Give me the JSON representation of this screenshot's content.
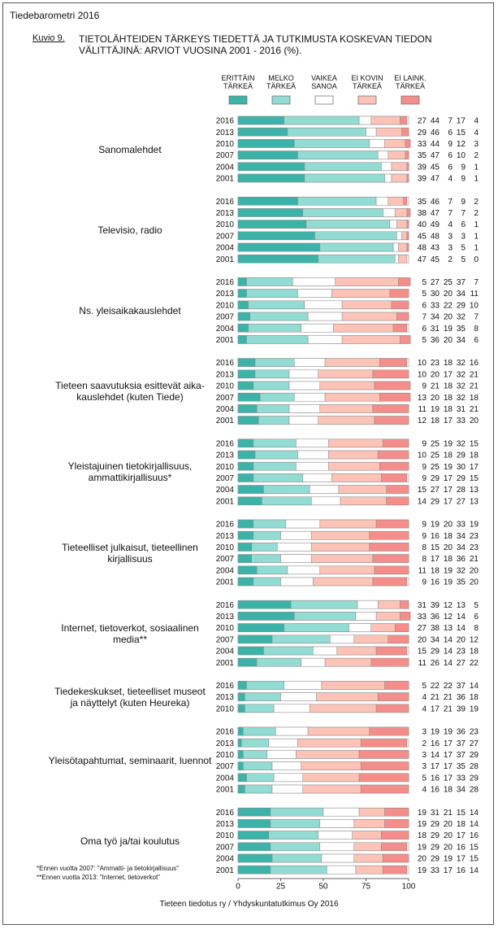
{
  "header": "Tiedebarometri 2016",
  "figure_label": "Kuvio 9.",
  "chart_data": {
    "type": "stacked-bar",
    "title": "TIETOLÄHTEIDEN TÄRKEYS TIEDETTÄ JA TUTKIMUSTA KOSKEVAN TIEDON\nVÄLITTÄJINÄ: ARVIOT VUOSINA 2001 - 2016 (%).",
    "xlim": [
      0,
      100
    ],
    "xticks": [
      0,
      25,
      50,
      75,
      100
    ],
    "series": [
      {
        "name": "ERITTÄIN\nTÄRKEÄ",
        "color": "#3cb3a9"
      },
      {
        "name": "MELKO\nTÄRKEÄ",
        "color": "#93dcd3"
      },
      {
        "name": "VAIKEA\nSANOA",
        "color": "#ffffff"
      },
      {
        "name": "EI KOVIN\nTÄRKEÄ",
        "color": "#fcc3b6"
      },
      {
        "name": "EI LAINK.\nTÄRKEÄ",
        "color": "#f58e8a"
      }
    ],
    "groups": [
      {
        "label": "Sanomalehdet",
        "categories": [
          "2016",
          "2013",
          "2010",
          "2007",
          "2004",
          "2001"
        ],
        "values": [
          [
            27,
            44,
            7,
            17,
            4
          ],
          [
            29,
            46,
            6,
            15,
            4
          ],
          [
            33,
            44,
            9,
            12,
            3
          ],
          [
            35,
            47,
            6,
            10,
            2
          ],
          [
            39,
            45,
            6,
            9,
            1
          ],
          [
            39,
            47,
            4,
            9,
            1
          ]
        ]
      },
      {
        "label": "Televisio, radio",
        "categories": [
          "2016",
          "2013",
          "2010",
          "2007",
          "2004",
          "2001"
        ],
        "values": [
          [
            35,
            46,
            7,
            9,
            2
          ],
          [
            38,
            47,
            7,
            7,
            2
          ],
          [
            40,
            49,
            4,
            6,
            1
          ],
          [
            45,
            48,
            3,
            3,
            1
          ],
          [
            48,
            43,
            3,
            5,
            1
          ],
          [
            47,
            45,
            2,
            5,
            0
          ]
        ]
      },
      {
        "label": "Ns. yleisaikakauslehdet",
        "categories": [
          "2016",
          "2013",
          "2010",
          "2007",
          "2004",
          "2001"
        ],
        "values": [
          [
            5,
            27,
            25,
            37,
            7
          ],
          [
            5,
            30,
            20,
            34,
            11
          ],
          [
            6,
            33,
            22,
            29,
            10
          ],
          [
            7,
            34,
            20,
            32,
            7
          ],
          [
            6,
            31,
            19,
            35,
            8
          ],
          [
            5,
            36,
            20,
            34,
            6
          ]
        ]
      },
      {
        "label": "Tieteen saavutuksia esittevät aika-\nkauslehdet (kuten Tiede)",
        "categories": [
          "2016",
          "2013",
          "2010",
          "2007",
          "2004",
          "2001"
        ],
        "values": [
          [
            10,
            23,
            18,
            32,
            16
          ],
          [
            10,
            20,
            17,
            32,
            21
          ],
          [
            9,
            21,
            18,
            32,
            21
          ],
          [
            13,
            20,
            18,
            32,
            18
          ],
          [
            11,
            19,
            18,
            31,
            21
          ],
          [
            12,
            18,
            17,
            33,
            20
          ]
        ]
      },
      {
        "label": "Yleistajuinen tietokirjallisuus,\nammattikirjallisuus*",
        "categories": [
          "2016",
          "2013",
          "2010",
          "2007",
          "2004",
          "2001"
        ],
        "values": [
          [
            9,
            25,
            19,
            32,
            15
          ],
          [
            10,
            25,
            18,
            29,
            18
          ],
          [
            9,
            25,
            19,
            30,
            17
          ],
          [
            9,
            29,
            17,
            29,
            15
          ],
          [
            15,
            27,
            17,
            28,
            13
          ],
          [
            14,
            29,
            17,
            27,
            13
          ]
        ]
      },
      {
        "label": "Tieteelliset julkaisut, tieteellinen\nkirjallisuus",
        "categories": [
          "2016",
          "2013",
          "2010",
          "2007",
          "2004",
          "2001"
        ],
        "values": [
          [
            9,
            19,
            20,
            33,
            19
          ],
          [
            9,
            16,
            18,
            34,
            23
          ],
          [
            8,
            15,
            20,
            34,
            23
          ],
          [
            8,
            17,
            18,
            36,
            21
          ],
          [
            11,
            18,
            19,
            32,
            20
          ],
          [
            9,
            16,
            19,
            35,
            20
          ]
        ]
      },
      {
        "label": "Internet, tietoverkot, sosiaalinen\nmedia**",
        "categories": [
          "2016",
          "2013",
          "2010",
          "2007",
          "2004",
          "2001"
        ],
        "values": [
          [
            31,
            39,
            12,
            13,
            5
          ],
          [
            33,
            36,
            12,
            14,
            6
          ],
          [
            27,
            38,
            13,
            14,
            8
          ],
          [
            20,
            34,
            14,
            20,
            12
          ],
          [
            15,
            29,
            14,
            23,
            18
          ],
          [
            11,
            26,
            14,
            27,
            22
          ]
        ]
      },
      {
        "label": "Tiedekeskukset, tieteelliset museot\nja näyttelyt (kuten Heureka)",
        "categories": [
          "2016",
          "2013",
          "2010"
        ],
        "values": [
          [
            5,
            22,
            22,
            37,
            14
          ],
          [
            4,
            21,
            21,
            36,
            18
          ],
          [
            4,
            17,
            21,
            39,
            19
          ]
        ]
      },
      {
        "label": "Yleisötapahtumat, seminaarit, luennot",
        "categories": [
          "2016",
          "2013",
          "2010",
          "2007",
          "2004",
          "2001"
        ],
        "values": [
          [
            3,
            19,
            19,
            36,
            23
          ],
          [
            2,
            16,
            17,
            37,
            27
          ],
          [
            3,
            14,
            17,
            37,
            29
          ],
          [
            3,
            17,
            17,
            35,
            28
          ],
          [
            5,
            16,
            17,
            33,
            29
          ],
          [
            4,
            16,
            18,
            34,
            28
          ]
        ]
      },
      {
        "label": "Oma työ ja/tai koulutus",
        "categories": [
          "2016",
          "2013",
          "2010",
          "2007",
          "2004",
          "2001"
        ],
        "values": [
          [
            19,
            31,
            21,
            15,
            14
          ],
          [
            19,
            29,
            20,
            18,
            14
          ],
          [
            18,
            29,
            20,
            17,
            16
          ],
          [
            19,
            29,
            20,
            16,
            15
          ],
          [
            20,
            29,
            19,
            17,
            15
          ],
          [
            19,
            33,
            17,
            16,
            14
          ]
        ]
      }
    ]
  },
  "notes": [
    "*Ennen vuotta 2007: \"Ammatti- ja tietokirjallisuus\"",
    "**Ennen vuotta 2013: \"Internet, tietoverkot\""
  ],
  "source": "Tieteen tiedotus ry / Yhdyskuntatutkimus Oy 2016"
}
